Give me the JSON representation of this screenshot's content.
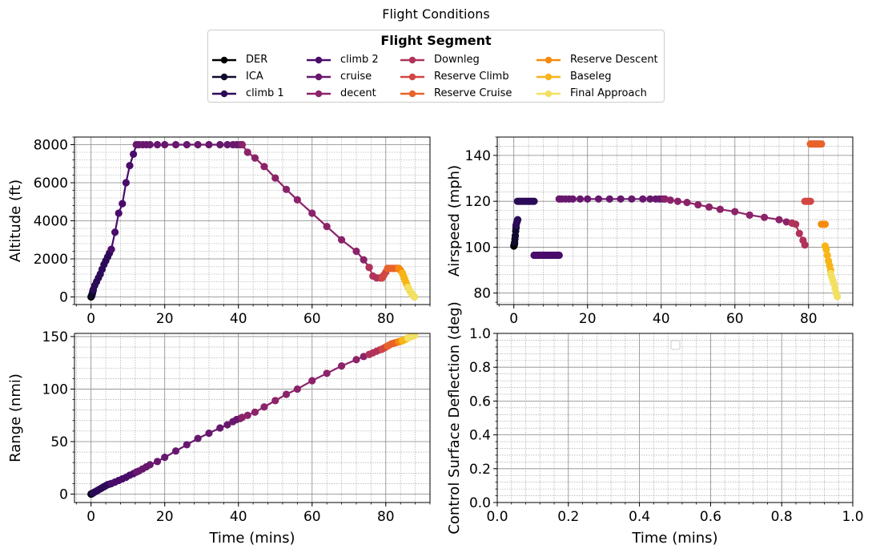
{
  "figure_title": "Flight Conditions",
  "legend": {
    "title": "Flight Segment",
    "items": [
      {
        "label": "DER",
        "color": "#000004"
      },
      {
        "label": "ICA",
        "color": "#0f0b2c"
      },
      {
        "label": "climb 1",
        "color": "#2b0b57"
      },
      {
        "label": "climb 2",
        "color": "#4a0c6b"
      },
      {
        "label": "cruise",
        "color": "#68176e"
      },
      {
        "label": "decent",
        "color": "#8c2369"
      },
      {
        "label": "Downleg",
        "color": "#b1325a"
      },
      {
        "label": "Reserve Climb",
        "color": "#d24644"
      },
      {
        "label": "Reserve Cruise",
        "color": "#e8632a"
      },
      {
        "label": "Reserve Descent",
        "color": "#f68a0e"
      },
      {
        "label": "Baseleg",
        "color": "#f8b518"
      },
      {
        "label": "Final Approach",
        "color": "#f2e062"
      }
    ]
  },
  "chart_data": [
    {
      "type": "line",
      "id": "altitude",
      "xlabel": "",
      "ylabel": "Altitude (ft)",
      "xlim": [
        -4.5,
        92
      ],
      "ylim": [
        -400,
        8400
      ],
      "xticks": [
        0,
        20,
        40,
        60,
        80
      ],
      "yticks": [
        0,
        2000,
        4000,
        6000,
        8000
      ],
      "grid": true,
      "series": [
        {
          "segment": 0,
          "x": [
            0,
            0.05,
            0.1,
            0.15,
            0.2
          ],
          "y": [
            0,
            20,
            40,
            60,
            80
          ]
        },
        {
          "segment": 1,
          "x": [
            0.2,
            0.3,
            0.4,
            0.5,
            0.6
          ],
          "y": [
            80,
            150,
            220,
            300,
            380
          ]
        },
        {
          "segment": 2,
          "x": [
            0.6,
            1.0,
            1.5,
            2.0,
            2.5,
            3.0,
            3.5,
            4.0,
            4.5,
            5.0,
            5.5
          ],
          "y": [
            380,
            600,
            800,
            1000,
            1200,
            1450,
            1700,
            1900,
            2100,
            2300,
            2500
          ]
        },
        {
          "segment": 3,
          "x": [
            5.5,
            6.5,
            7.5,
            8.5,
            9.5,
            10.5,
            11.5,
            12.3
          ],
          "y": [
            2500,
            3400,
            4400,
            4900,
            6000,
            6900,
            7500,
            8000
          ]
        },
        {
          "segment": 4,
          "x": [
            12.3,
            13,
            14,
            15,
            16,
            18,
            20,
            23,
            26,
            29,
            32,
            35,
            37,
            38.5,
            39.5,
            40.5,
            41
          ],
          "y": [
            8000,
            8000,
            8000,
            8000,
            8000,
            8000,
            8000,
            8000,
            8000,
            8000,
            8000,
            8000,
            8000,
            8000,
            8000,
            8000,
            8000
          ]
        },
        {
          "segment": 5,
          "x": [
            41,
            42.5,
            44.5,
            47,
            50,
            53,
            56,
            60,
            64,
            68,
            72,
            74,
            75.5
          ],
          "y": [
            8000,
            7600,
            7300,
            6850,
            6250,
            5650,
            5100,
            4400,
            3700,
            3000,
            2400,
            1950,
            1550
          ]
        },
        {
          "segment": 6,
          "x": [
            75.5,
            76.5,
            77.5,
            78.5,
            79
          ],
          "y": [
            1550,
            1100,
            1000,
            1000,
            1000
          ]
        },
        {
          "segment": 7,
          "x": [
            79,
            79.5,
            80,
            80.5
          ],
          "y": [
            1000,
            1150,
            1300,
            1500
          ]
        },
        {
          "segment": 8,
          "x": [
            80.5,
            81,
            81.5,
            82,
            82.5,
            83,
            83.5
          ],
          "y": [
            1500,
            1500,
            1500,
            1500,
            1500,
            1500,
            1500
          ]
        },
        {
          "segment": 9,
          "x": [
            83.5,
            84,
            84.5
          ],
          "y": [
            1500,
            1400,
            1250
          ]
        },
        {
          "segment": 10,
          "x": [
            84.5,
            84.8,
            85.1,
            85.4,
            85.7,
            86
          ],
          "y": [
            1250,
            1100,
            950,
            800,
            650,
            500
          ]
        },
        {
          "segment": 11,
          "x": [
            86,
            86.3,
            86.6,
            86.9,
            87.2,
            87.5,
            87.8
          ],
          "y": [
            500,
            400,
            300,
            200,
            120,
            60,
            0
          ]
        }
      ]
    },
    {
      "type": "line",
      "id": "airspeed",
      "xlabel": "",
      "ylabel": "Airspeed (mph)",
      "xlim": [
        -4.5,
        92
      ],
      "ylim": [
        75,
        148
      ],
      "xticks": [
        0,
        20,
        40,
        60,
        80
      ],
      "yticks": [
        80,
        100,
        120,
        140
      ],
      "grid": true,
      "series": [
        {
          "segment": 0,
          "x": [
            0,
            0.05,
            0.1,
            0.15,
            0.2
          ],
          "y": [
            100.5,
            100.8,
            101,
            101.3,
            101.6
          ]
        },
        {
          "segment": 1,
          "x": [
            0.2,
            0.3,
            0.4,
            0.5,
            0.6
          ],
          "y": [
            102,
            103.5,
            105,
            107,
            108.5
          ]
        },
        {
          "segment": 2,
          "x": [
            0.6,
            0.75,
            0.9,
            1.05
          ],
          "y": [
            109.5,
            110.5,
            111.3,
            112
          ]
        },
        {
          "segment": 2,
          "x": [
            1.0,
            1.5,
            2.0,
            2.5,
            3.0,
            3.5,
            4.0,
            4.5,
            5.0,
            5.5
          ],
          "y": [
            120,
            120,
            120,
            120,
            120,
            120,
            120,
            120,
            120,
            120
          ]
        },
        {
          "segment": 3,
          "x": [
            5.5,
            6.0,
            6.5,
            7.0,
            7.5,
            8.0,
            8.5,
            9.0,
            9.5,
            10.0,
            10.5,
            11.0,
            11.5,
            12.0,
            12.3
          ],
          "y": [
            96.5,
            96.5,
            96.5,
            96.5,
            96.5,
            96.5,
            96.5,
            96.5,
            96.5,
            96.5,
            96.5,
            96.5,
            96.5,
            96.5,
            96.5
          ]
        },
        {
          "segment": 4,
          "x": [
            12.3,
            13,
            14,
            15,
            16,
            18,
            20,
            23,
            26,
            29,
            32,
            35,
            37,
            38.5,
            39.5,
            40.5,
            41
          ],
          "y": [
            121,
            121,
            121,
            121,
            121,
            121,
            121,
            121,
            121,
            121,
            121,
            121,
            121,
            121,
            121,
            121,
            121
          ]
        },
        {
          "segment": 5,
          "x": [
            41,
            42.5,
            44.5,
            47,
            50,
            53,
            56,
            60,
            64,
            68,
            72,
            74,
            75.5
          ],
          "y": [
            121,
            120.5,
            120,
            119.5,
            118.5,
            117.5,
            116.5,
            115.5,
            114,
            113,
            112,
            111,
            110.5
          ]
        },
        {
          "segment": 6,
          "x": [
            75.5,
            76.5,
            77.5,
            78.5,
            79
          ],
          "y": [
            110.5,
            110,
            106,
            103,
            101
          ]
        },
        {
          "segment": 7,
          "x": [
            79,
            79.5,
            80,
            80.5
          ],
          "y": [
            120,
            120,
            120,
            120
          ]
        },
        {
          "segment": 8,
          "x": [
            80.5,
            81,
            81.5,
            82,
            82.5,
            83,
            83.5
          ],
          "y": [
            145,
            145,
            145,
            145,
            145,
            145,
            145
          ]
        },
        {
          "segment": 9,
          "x": [
            83.5,
            84,
            84.5
          ],
          "y": [
            110,
            110,
            110
          ]
        },
        {
          "segment": 10,
          "x": [
            84.5,
            84.8,
            85.1,
            85.4,
            85.7,
            86
          ],
          "y": [
            100.5,
            99,
            96.5,
            94,
            92,
            90
          ]
        },
        {
          "segment": 11,
          "x": [
            86,
            86.3,
            86.6,
            86.9,
            87.2,
            87.5,
            87.8
          ],
          "y": [
            88.5,
            87,
            85.5,
            84,
            82,
            80,
            78.5
          ]
        }
      ]
    },
    {
      "type": "line",
      "id": "range",
      "xlabel": "Time (mins)",
      "ylabel": "Range (nmi)",
      "xlim": [
        -4.5,
        92
      ],
      "ylim": [
        -8,
        153
      ],
      "xticks": [
        0,
        20,
        40,
        60,
        80
      ],
      "yticks": [
        0,
        50,
        100,
        150
      ],
      "grid": true,
      "series": [
        {
          "segment": 0,
          "x": [
            0,
            0.05,
            0.1,
            0.15,
            0.2
          ],
          "y": [
            0,
            0.1,
            0.2,
            0.3,
            0.4
          ]
        },
        {
          "segment": 1,
          "x": [
            0.2,
            0.3,
            0.4,
            0.5,
            0.6
          ],
          "y": [
            0.4,
            0.6,
            0.8,
            1.0,
            1.2
          ]
        },
        {
          "segment": 2,
          "x": [
            0.6,
            1.0,
            1.5,
            2.0,
            2.5,
            3.0,
            3.5,
            4.0,
            4.5,
            5.0,
            5.5
          ],
          "y": [
            1.2,
            2,
            3,
            4,
            5,
            6,
            7,
            8,
            9,
            9.5,
            10
          ]
        },
        {
          "segment": 3,
          "x": [
            5.5,
            6.5,
            7.5,
            8.5,
            9.5,
            10.5,
            11.5,
            12.3
          ],
          "y": [
            10,
            11.5,
            13,
            14.5,
            16,
            18,
            19.5,
            21
          ]
        },
        {
          "segment": 4,
          "x": [
            12.3,
            13,
            14,
            15,
            16,
            18,
            20,
            23,
            26,
            29,
            32,
            35,
            37,
            38.5,
            39.5,
            40.5,
            41
          ],
          "y": [
            21,
            22,
            24,
            26,
            28,
            31,
            35,
            41,
            47,
            53,
            58,
            63,
            66,
            69,
            71,
            72,
            73
          ]
        },
        {
          "segment": 5,
          "x": [
            41,
            42.5,
            44.5,
            47,
            50,
            53,
            56,
            60,
            64,
            68,
            72,
            74,
            75.5
          ],
          "y": [
            73,
            75,
            78,
            83,
            89,
            95,
            100,
            108,
            115,
            122,
            128,
            131,
            133
          ]
        },
        {
          "segment": 6,
          "x": [
            75.5,
            76.5,
            77.5,
            78.5,
            79
          ],
          "y": [
            133,
            134.5,
            136,
            137.5,
            138
          ]
        },
        {
          "segment": 7,
          "x": [
            79,
            79.5,
            80,
            80.5
          ],
          "y": [
            138,
            139,
            140,
            141
          ]
        },
        {
          "segment": 8,
          "x": [
            80.5,
            81,
            81.5,
            82,
            82.5,
            83,
            83.5
          ],
          "y": [
            141,
            142,
            143,
            143.5,
            144,
            144.5,
            145
          ]
        },
        {
          "segment": 9,
          "x": [
            83.5,
            84,
            84.5
          ],
          "y": [
            145,
            145.5,
            146
          ]
        },
        {
          "segment": 10,
          "x": [
            84.5,
            84.8,
            85.1,
            85.4,
            85.7,
            86
          ],
          "y": [
            146,
            146.5,
            147,
            147.5,
            148,
            148.5
          ]
        },
        {
          "segment": 11,
          "x": [
            86,
            86.3,
            86.6,
            86.9,
            87.2,
            87.5,
            87.8
          ],
          "y": [
            148.5,
            149,
            149.5,
            150,
            150.3,
            150.6,
            151
          ]
        }
      ]
    },
    {
      "type": "line",
      "id": "control_surface",
      "xlabel": "Time (mins)",
      "ylabel": "Control Surface Deflection (deg)",
      "xlim": [
        0,
        1
      ],
      "ylim": [
        0,
        1
      ],
      "xticks": [
        0.0,
        0.2,
        0.4,
        0.6,
        0.8,
        1.0
      ],
      "yticks": [
        0.0,
        0.2,
        0.4,
        0.6,
        0.8,
        1.0
      ],
      "grid": true,
      "series": []
    }
  ]
}
